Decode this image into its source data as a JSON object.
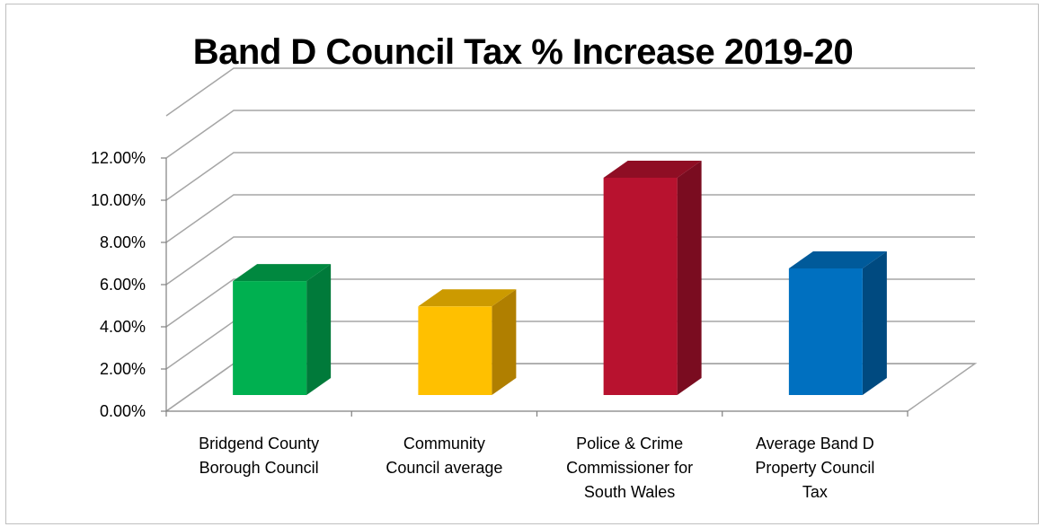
{
  "chart_data": {
    "type": "bar",
    "title": "Band D Council Tax % Increase 2019-20",
    "xlabel": "",
    "ylabel": "",
    "ylim": [
      0,
      12
    ],
    "y_ticks": [
      "0.00%",
      "2.00%",
      "4.00%",
      "6.00%",
      "8.00%",
      "10.00%",
      "12.00%"
    ],
    "categories": [
      [
        "Bridgend County",
        "Borough Council"
      ],
      [
        "Community",
        "Council average"
      ],
      [
        "Police & Crime",
        "Commissioner for",
        "South Wales"
      ],
      [
        "Average Band D",
        "Property Council",
        "Tax"
      ]
    ],
    "values": [
      5.4,
      4.2,
      10.3,
      6.0
    ],
    "colors": [
      {
        "front": "#00b050",
        "side": "#007a3a",
        "top": "#00883f"
      },
      {
        "front": "#ffc000",
        "side": "#b07f00",
        "top": "#cc9a00"
      },
      {
        "front": "#b8122f",
        "side": "#7a0c20",
        "top": "#8f0e24"
      },
      {
        "front": "#0070c0",
        "side": "#004a80",
        "top": "#005a9a"
      }
    ],
    "grid": true,
    "legend": "none",
    "three_d": true
  }
}
